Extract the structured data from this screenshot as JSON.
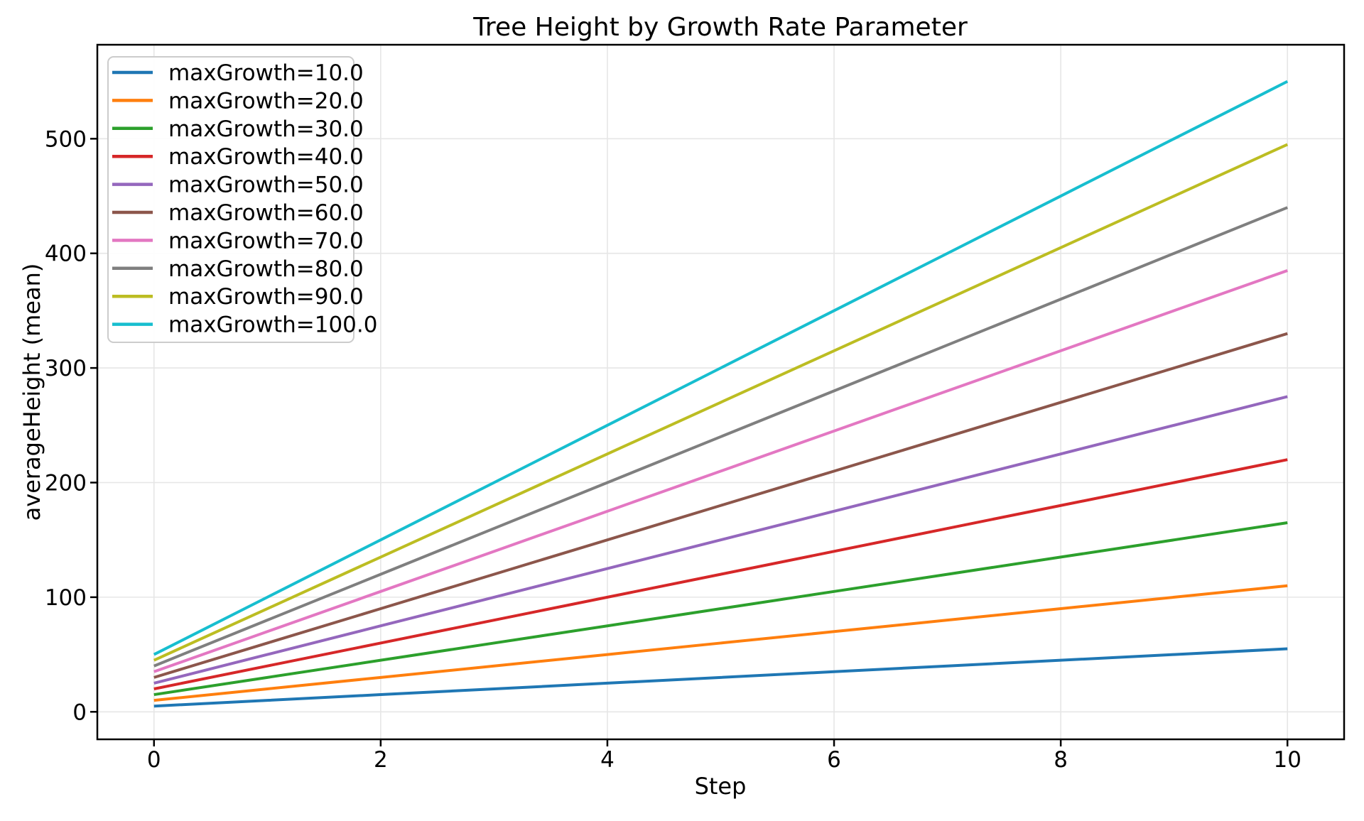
{
  "figure": {
    "background": "#ffffff",
    "spine_color": "#000000",
    "tick_color": "#000000"
  },
  "chart_data": {
    "type": "line",
    "title": "Tree Height by Growth Rate Parameter",
    "xlabel": "Step",
    "ylabel": "averageHeight (mean)",
    "x": [
      0,
      1,
      2,
      3,
      4,
      5,
      6,
      7,
      8,
      9,
      10
    ],
    "series": [
      {
        "name": "maxGrowth=10.0",
        "color": "#1f77b4",
        "values": [
          5,
          10,
          15,
          20,
          25,
          30,
          35,
          40,
          45,
          50,
          55
        ]
      },
      {
        "name": "maxGrowth=20.0",
        "color": "#ff7f0e",
        "values": [
          10,
          20,
          30,
          40,
          50,
          60,
          70,
          80,
          90,
          100,
          110
        ]
      },
      {
        "name": "maxGrowth=30.0",
        "color": "#2ca02c",
        "values": [
          15,
          30,
          45,
          60,
          75,
          90,
          105,
          120,
          135,
          150,
          165
        ]
      },
      {
        "name": "maxGrowth=40.0",
        "color": "#d62728",
        "values": [
          20,
          40,
          60,
          80,
          100,
          120,
          140,
          160,
          180,
          200,
          220
        ]
      },
      {
        "name": "maxGrowth=50.0",
        "color": "#9467bd",
        "values": [
          25,
          50,
          75,
          100,
          125,
          150,
          175,
          200,
          225,
          250,
          275
        ]
      },
      {
        "name": "maxGrowth=60.0",
        "color": "#8c564b",
        "values": [
          30,
          60,
          90,
          120,
          150,
          180,
          210,
          240,
          270,
          300,
          330
        ]
      },
      {
        "name": "maxGrowth=70.0",
        "color": "#e377c2",
        "values": [
          35,
          70,
          105,
          140,
          175,
          210,
          245,
          280,
          315,
          350,
          385
        ]
      },
      {
        "name": "maxGrowth=80.0",
        "color": "#7f7f7f",
        "values": [
          40,
          80,
          120,
          160,
          200,
          240,
          280,
          320,
          360,
          400,
          440
        ]
      },
      {
        "name": "maxGrowth=90.0",
        "color": "#bcbd22",
        "values": [
          45,
          90,
          135,
          180,
          225,
          270,
          315,
          360,
          405,
          450,
          495
        ]
      },
      {
        "name": "maxGrowth=100.0",
        "color": "#17becf",
        "values": [
          50,
          100,
          150,
          200,
          250,
          300,
          350,
          400,
          450,
          500,
          550
        ]
      }
    ],
    "xticks": [
      0,
      2,
      4,
      6,
      8,
      10
    ],
    "yticks": [
      0,
      100,
      200,
      300,
      400,
      500
    ],
    "xlim": [
      -0.5,
      10.5
    ],
    "ylim": [
      -24,
      582
    ],
    "grid": true,
    "grid_color": "#e6e6e6",
    "line_width": 4,
    "legend_position": "upper left",
    "legend_border_color": "#cccccc"
  }
}
